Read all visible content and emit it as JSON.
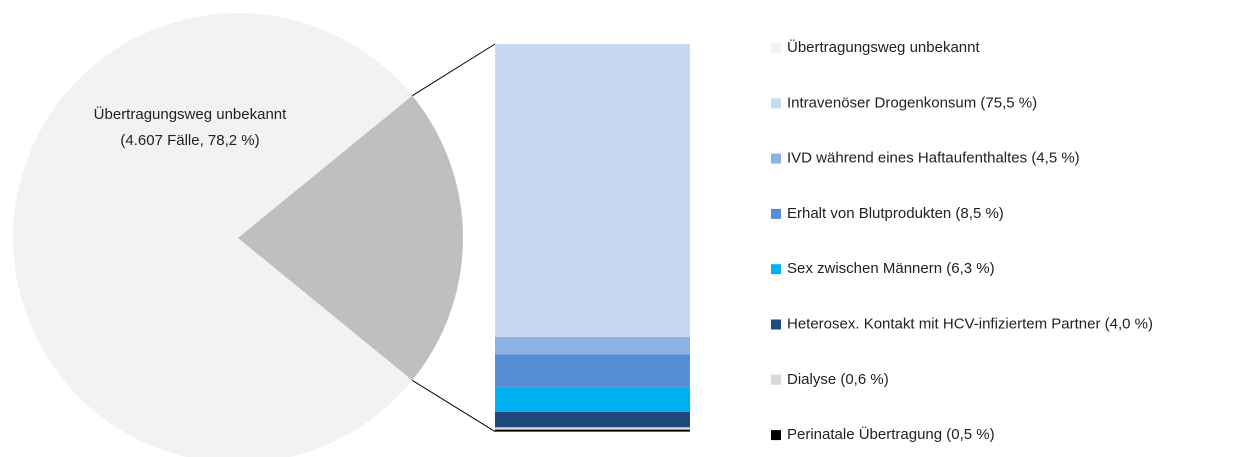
{
  "chart_data": {
    "type": "pie-of-bar",
    "pie": {
      "categories": [
        "Übertragungsweg unbekannt",
        null
      ],
      "values": [
        78.2,
        21.8
      ],
      "value_labels": [
        "(4.607 Fälle, 78,2 %)",
        null
      ],
      "colors": [
        "#f2f2f2",
        "#bfbfbf"
      ]
    },
    "bar": {
      "series": [
        {
          "name": "Intravenöser Drogenkonsum (75,5 %)",
          "color": "#c6d9f1",
          "values": [
            75.5
          ]
        },
        {
          "name": "IVD während eines Haftaufenthaltes (4,5 %)",
          "color": "#8db3e2",
          "values": [
            4.5
          ]
        },
        {
          "name": "Erhalt von Blutprodukten (8,5 %)",
          "color": "#558ed5",
          "values": [
            8.5
          ]
        },
        {
          "name": "Sex zwischen Männern (6,3 %)",
          "color": "#00b0f0",
          "values": [
            6.3
          ]
        },
        {
          "name": "Heterosex. Kontakt mit HCV-infiziertem Partner (4,0 %)",
          "color": "#1f497d",
          "values": [
            4.0
          ]
        },
        {
          "name": "Dialyse (0,6 %)",
          "color": "#d9d9d9",
          "values": [
            0.6
          ]
        },
        {
          "name": "Perinatale Übertragung (0,5 %)",
          "color": "#000000",
          "values": [
            0.5
          ]
        }
      ]
    },
    "legend": true
  }
}
